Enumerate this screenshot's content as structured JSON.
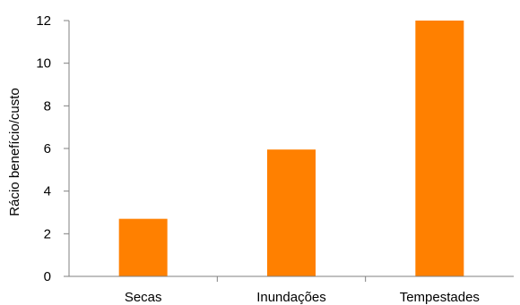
{
  "chart_data": {
    "type": "bar",
    "categories": [
      "Secas",
      "Inundações",
      "Tempestades"
    ],
    "values": [
      2.7,
      5.95,
      12
    ],
    "title": "",
    "xlabel": "",
    "ylabel": "Rácio benefício/custo",
    "ylim": [
      0,
      12
    ],
    "yticks": [
      0,
      2,
      4,
      6,
      8,
      10,
      12
    ],
    "grid": false,
    "bar_color": "#ff8000"
  }
}
